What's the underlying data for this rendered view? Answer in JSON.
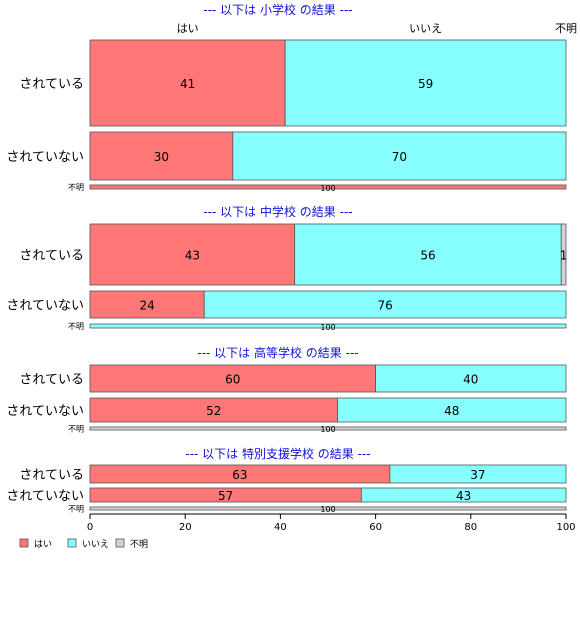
{
  "chart_data": {
    "type": "bar",
    "orientation": "horizontal",
    "stacked": true,
    "xlim": [
      0,
      100
    ],
    "x_ticks": [
      "0",
      "20",
      "40",
      "60",
      "80",
      "100"
    ],
    "top_category_labels": [
      "はい",
      "いいえ",
      "不明"
    ],
    "legend": {
      "position": "bottom-left",
      "items": [
        {
          "label": "はい",
          "color": "#ff7777"
        },
        {
          "label": "いいえ",
          "color": "#88ffff"
        },
        {
          "label": "不明",
          "color": "#d3d3d3"
        }
      ]
    },
    "panels": [
      {
        "title": "--- 以下は 小学校 の結果 ---",
        "rows": [
          {
            "label": "されている",
            "values": [
              41,
              59,
              0
            ],
            "labels": [
              "41",
              "59",
              ""
            ]
          },
          {
            "label": "されていない",
            "values": [
              30,
              70,
              0
            ],
            "labels": [
              "30",
              "70",
              ""
            ]
          },
          {
            "label": "不明",
            "values": [
              100,
              0,
              0
            ],
            "labels": [
              "100",
              "",
              ""
            ]
          }
        ]
      },
      {
        "title": "--- 以下は 中学校 の結果 ---",
        "rows": [
          {
            "label": "されている",
            "values": [
              43,
              56,
              1
            ],
            "labels": [
              "43",
              "56",
              "1"
            ]
          },
          {
            "label": "されていない",
            "values": [
              24,
              76,
              0
            ],
            "labels": [
              "24",
              "76",
              ""
            ]
          },
          {
            "label": "不明",
            "values": [
              0,
              100,
              0
            ],
            "labels": [
              "",
              "100",
              ""
            ]
          }
        ]
      },
      {
        "title": "--- 以下は 高等学校 の結果 ---",
        "rows": [
          {
            "label": "されている",
            "values": [
              60,
              40,
              0
            ],
            "labels": [
              "60",
              "40",
              ""
            ]
          },
          {
            "label": "されていない",
            "values": [
              52,
              48,
              0
            ],
            "labels": [
              "52",
              "48",
              ""
            ]
          },
          {
            "label": "不明",
            "values": [
              0,
              0,
              100
            ],
            "labels": [
              "",
              "",
              "100"
            ]
          }
        ]
      },
      {
        "title": "--- 以下は 特別支援学校 の結果 ---",
        "rows": [
          {
            "label": "されている",
            "values": [
              63,
              37,
              0
            ],
            "labels": [
              "63",
              "37",
              ""
            ]
          },
          {
            "label": "されていない",
            "values": [
              57,
              43,
              0
            ],
            "labels": [
              "57",
              "43",
              ""
            ]
          },
          {
            "label": "不明",
            "values": [
              0,
              0,
              100
            ],
            "labels": [
              "",
              "",
              "100"
            ]
          }
        ]
      }
    ]
  }
}
